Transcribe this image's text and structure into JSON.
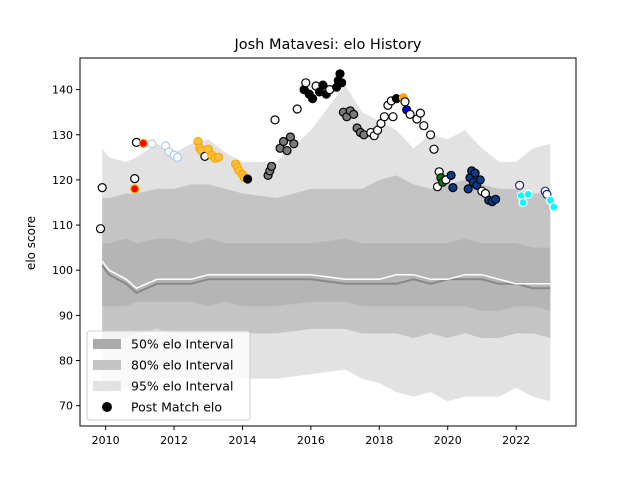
{
  "chart_data": {
    "type": "scatter",
    "title": "Josh Matavesi: elo History",
    "xlabel": "",
    "ylabel": "elo score",
    "xlim": [
      2009.25,
      2023.75
    ],
    "ylim": [
      65.5,
      147
    ],
    "x_ticks": [
      2010,
      2012,
      2014,
      2016,
      2018,
      2020,
      2022
    ],
    "y_ticks": [
      70,
      80,
      90,
      100,
      110,
      120,
      130,
      140
    ],
    "grid": false,
    "legend_position": "bottom-left",
    "legend": [
      {
        "label": "50% elo Interval",
        "kind": "band50"
      },
      {
        "label": "80% elo Interval",
        "kind": "band80"
      },
      {
        "label": "95% elo Interval",
        "kind": "band95"
      },
      {
        "label": "Post Match elo",
        "kind": "marker"
      }
    ],
    "colors": {
      "band50": "#aaaaaa",
      "band80": "#c4c4c4",
      "band95": "#e2e2e2",
      "median_line": "#888888",
      "mean_line": "#ffffff",
      "marker_default": "#000000",
      "marker_edge": "#000000"
    },
    "bands": {
      "x": [
        2009.9,
        2010.1,
        2010.6,
        2010.9,
        2011.5,
        2012.0,
        2012.5,
        2013.0,
        2013.5,
        2014.0,
        2015.0,
        2016.0,
        2017.0,
        2017.5,
        2018.0,
        2018.5,
        2019.0,
        2019.5,
        2020.0,
        2020.5,
        2021.0,
        2021.5,
        2022.0,
        2022.5,
        2023.0
      ],
      "p2_5": [
        73,
        73,
        74,
        75,
        76,
        76,
        76,
        75,
        76,
        76,
        76,
        77,
        78,
        76,
        75,
        73,
        72,
        73,
        71,
        72,
        72,
        72,
        74,
        72,
        71
      ],
      "p10": [
        84,
        84,
        85,
        86,
        87,
        86,
        86,
        86,
        86,
        86,
        86,
        87,
        87,
        86,
        86,
        86,
        85,
        86,
        85,
        86,
        85,
        85,
        86,
        86,
        85
      ],
      "p25": [
        92,
        92,
        92,
        93,
        93,
        93,
        93,
        92,
        93,
        92,
        92,
        93,
        93,
        92,
        92,
        92,
        92,
        92,
        92,
        92,
        91,
        91,
        92,
        92,
        91
      ],
      "p75": [
        106,
        106,
        107,
        106,
        107,
        107,
        106,
        107,
        106,
        106,
        106,
        106,
        107,
        106,
        106,
        106,
        106,
        106,
        106,
        107,
        106,
        106,
        106,
        105,
        105
      ],
      "p90": [
        116,
        116,
        117,
        117,
        118,
        118,
        119,
        119,
        118,
        117,
        116,
        118,
        118,
        118,
        120,
        121,
        119,
        118,
        119,
        120,
        119,
        118,
        118,
        117,
        117
      ],
      "p97_5": [
        127,
        125,
        124,
        125,
        128,
        126,
        128,
        129,
        126,
        124,
        124,
        131,
        141,
        135,
        133,
        131,
        127,
        130,
        129,
        131,
        127,
        124,
        124,
        127,
        128
      ],
      "median": [
        101,
        99,
        97,
        95,
        97,
        97,
        97,
        98,
        98,
        98,
        98,
        98,
        97,
        97,
        97,
        97,
        98,
        97,
        98,
        98,
        98,
        97,
        97,
        96,
        96
      ],
      "mean": [
        102,
        100,
        98,
        96,
        98,
        98,
        98,
        99,
        99,
        99,
        99,
        99,
        98,
        98,
        98,
        99,
        99,
        98,
        98,
        99,
        99,
        98,
        97,
        97,
        97
      ]
    },
    "points": [
      {
        "x": 2009.85,
        "y": 109.2,
        "color": "#ffffff"
      },
      {
        "x": 2009.9,
        "y": 118.3,
        "color": "#ffffff"
      },
      {
        "x": 2010.85,
        "y": 120.3,
        "color": "#ffffff"
      },
      {
        "x": 2010.85,
        "y": 118.0,
        "color": "#ff0000",
        "edge": "#ffa500"
      },
      {
        "x": 2010.9,
        "y": 128.3,
        "color": "#ffffff"
      },
      {
        "x": 2011.1,
        "y": 128.1,
        "color": "#ff0000",
        "edge": "#ffa500"
      },
      {
        "x": 2011.35,
        "y": 128.0,
        "color": "#ffffff",
        "edge": "#aaccee"
      },
      {
        "x": 2011.75,
        "y": 127.5,
        "color": "#ffffff",
        "edge": "#aaccee"
      },
      {
        "x": 2011.85,
        "y": 126.2,
        "color": "#ffffff",
        "edge": "#aaccee"
      },
      {
        "x": 2012.0,
        "y": 125.5,
        "color": "#ffffff",
        "edge": "#aaccee"
      },
      {
        "x": 2012.1,
        "y": 125.0,
        "color": "#ffffff",
        "edge": "#aaccee"
      },
      {
        "x": 2012.7,
        "y": 128.5,
        "color": "#f5c242",
        "edge": "#ffa500"
      },
      {
        "x": 2012.75,
        "y": 127.0,
        "color": "#f5c242",
        "edge": "#ffa500"
      },
      {
        "x": 2012.8,
        "y": 126.5,
        "color": "#f5c242",
        "edge": "#ffa500"
      },
      {
        "x": 2012.9,
        "y": 125.2,
        "color": "#ffffff"
      },
      {
        "x": 2013.0,
        "y": 126.8,
        "color": "#f5c242",
        "edge": "#ffa500"
      },
      {
        "x": 2013.1,
        "y": 125.5,
        "color": "#f5c242",
        "edge": "#ffa500"
      },
      {
        "x": 2013.2,
        "y": 124.8,
        "color": "#f5c242",
        "edge": "#ffa500"
      },
      {
        "x": 2013.3,
        "y": 125.0,
        "color": "#f5c242",
        "edge": "#ffa500"
      },
      {
        "x": 2013.8,
        "y": 123.5,
        "color": "#f5c242",
        "edge": "#ffa500"
      },
      {
        "x": 2013.85,
        "y": 122.8,
        "color": "#f5c242",
        "edge": "#ffa500"
      },
      {
        "x": 2013.9,
        "y": 122.0,
        "color": "#f5c242",
        "edge": "#ffa500"
      },
      {
        "x": 2014.0,
        "y": 121.2,
        "color": "#f5c242",
        "edge": "#ffa500"
      },
      {
        "x": 2014.05,
        "y": 120.5,
        "color": "#f5c242",
        "edge": "#ffa500"
      },
      {
        "x": 2014.15,
        "y": 120.2,
        "color": "#000000"
      },
      {
        "x": 2014.75,
        "y": 121.0,
        "color": "#7a7a7a"
      },
      {
        "x": 2014.8,
        "y": 122.0,
        "color": "#7a7a7a"
      },
      {
        "x": 2014.85,
        "y": 123.0,
        "color": "#7a7a7a"
      },
      {
        "x": 2014.95,
        "y": 133.3,
        "color": "#ffffff"
      },
      {
        "x": 2015.1,
        "y": 127.0,
        "color": "#7a7a7a"
      },
      {
        "x": 2015.2,
        "y": 128.5,
        "color": "#7a7a7a"
      },
      {
        "x": 2015.3,
        "y": 126.5,
        "color": "#7a7a7a"
      },
      {
        "x": 2015.4,
        "y": 129.5,
        "color": "#7a7a7a"
      },
      {
        "x": 2015.5,
        "y": 128.0,
        "color": "#7a7a7a"
      },
      {
        "x": 2015.6,
        "y": 135.7,
        "color": "#ffffff"
      },
      {
        "x": 2015.8,
        "y": 140.0,
        "color": "#000000"
      },
      {
        "x": 2015.85,
        "y": 141.5,
        "color": "#ffffff"
      },
      {
        "x": 2015.95,
        "y": 139.0,
        "color": "#000000"
      },
      {
        "x": 2016.05,
        "y": 138.0,
        "color": "#000000"
      },
      {
        "x": 2016.15,
        "y": 140.8,
        "color": "#ffffff"
      },
      {
        "x": 2016.25,
        "y": 139.5,
        "color": "#000000"
      },
      {
        "x": 2016.35,
        "y": 141.0,
        "color": "#000000"
      },
      {
        "x": 2016.45,
        "y": 139.0,
        "color": "#000000"
      },
      {
        "x": 2016.55,
        "y": 140.0,
        "color": "#ffffff"
      },
      {
        "x": 2016.75,
        "y": 140.5,
        "color": "#000000"
      },
      {
        "x": 2016.8,
        "y": 142.0,
        "color": "#000000"
      },
      {
        "x": 2016.85,
        "y": 143.5,
        "color": "#000000"
      },
      {
        "x": 2016.9,
        "y": 141.5,
        "color": "#000000"
      },
      {
        "x": 2016.95,
        "y": 135.0,
        "color": "#7a7a7a"
      },
      {
        "x": 2017.05,
        "y": 134.0,
        "color": "#7a7a7a"
      },
      {
        "x": 2017.15,
        "y": 135.3,
        "color": "#7a7a7a"
      },
      {
        "x": 2017.25,
        "y": 134.5,
        "color": "#7a7a7a"
      },
      {
        "x": 2017.35,
        "y": 131.5,
        "color": "#7a7a7a"
      },
      {
        "x": 2017.45,
        "y": 130.5,
        "color": "#7a7a7a"
      },
      {
        "x": 2017.55,
        "y": 130.0,
        "color": "#7a7a7a"
      },
      {
        "x": 2017.75,
        "y": 130.5,
        "color": "#ffffff"
      },
      {
        "x": 2017.85,
        "y": 129.8,
        "color": "#ffffff"
      },
      {
        "x": 2017.95,
        "y": 131.0,
        "color": "#ffffff"
      },
      {
        "x": 2018.05,
        "y": 132.5,
        "color": "#ffffff"
      },
      {
        "x": 2018.15,
        "y": 134.0,
        "color": "#ffffff"
      },
      {
        "x": 2018.25,
        "y": 136.5,
        "color": "#ffffff"
      },
      {
        "x": 2018.35,
        "y": 137.5,
        "color": "#ffffff"
      },
      {
        "x": 2018.4,
        "y": 134.0,
        "color": "#ffffff"
      },
      {
        "x": 2018.5,
        "y": 138.0,
        "color": "#000000"
      },
      {
        "x": 2018.7,
        "y": 138.2,
        "color": "#ffa500",
        "edge": "#ffa500"
      },
      {
        "x": 2018.75,
        "y": 137.3,
        "color": "#ffffff"
      },
      {
        "x": 2018.8,
        "y": 135.5,
        "color": "#0000ff"
      },
      {
        "x": 2018.9,
        "y": 134.5,
        "color": "#ffffff"
      },
      {
        "x": 2019.1,
        "y": 133.5,
        "color": "#ffffff"
      },
      {
        "x": 2019.2,
        "y": 134.8,
        "color": "#ffffff"
      },
      {
        "x": 2019.3,
        "y": 132.0,
        "color": "#ffffff"
      },
      {
        "x": 2019.5,
        "y": 130.0,
        "color": "#ffffff"
      },
      {
        "x": 2019.6,
        "y": 126.8,
        "color": "#ffffff"
      },
      {
        "x": 2019.7,
        "y": 118.5,
        "color": "#ffffff"
      },
      {
        "x": 2019.75,
        "y": 121.8,
        "color": "#ffffff"
      },
      {
        "x": 2019.8,
        "y": 120.5,
        "color": "#008000"
      },
      {
        "x": 2019.85,
        "y": 119.5,
        "color": "#008000"
      },
      {
        "x": 2019.95,
        "y": 120.0,
        "color": "#ffffff"
      },
      {
        "x": 2020.1,
        "y": 121.0,
        "color": "#0b3b8c"
      },
      {
        "x": 2020.15,
        "y": 118.3,
        "color": "#0b3b8c"
      },
      {
        "x": 2020.6,
        "y": 118.0,
        "color": "#0b3b8c"
      },
      {
        "x": 2020.65,
        "y": 120.5,
        "color": "#0b3b8c"
      },
      {
        "x": 2020.7,
        "y": 122.0,
        "color": "#0b3b8c"
      },
      {
        "x": 2020.75,
        "y": 119.5,
        "color": "#0b3b8c"
      },
      {
        "x": 2020.8,
        "y": 121.5,
        "color": "#0b3b8c"
      },
      {
        "x": 2020.85,
        "y": 118.8,
        "color": "#0b3b8c"
      },
      {
        "x": 2020.95,
        "y": 120.0,
        "color": "#0b3b8c"
      },
      {
        "x": 2021.0,
        "y": 117.5,
        "color": "#ffffff"
      },
      {
        "x": 2021.1,
        "y": 117.0,
        "color": "#ffffff"
      },
      {
        "x": 2021.2,
        "y": 115.5,
        "color": "#0b3b8c"
      },
      {
        "x": 2021.3,
        "y": 115.2,
        "color": "#0b3b8c"
      },
      {
        "x": 2021.4,
        "y": 115.7,
        "color": "#0b3b8c"
      },
      {
        "x": 2022.1,
        "y": 118.8,
        "color": "#ffffff",
        "edge": "#1a237e"
      },
      {
        "x": 2022.15,
        "y": 116.5,
        "color": "#00ffff",
        "edge": "#ffffff"
      },
      {
        "x": 2022.2,
        "y": 115.0,
        "color": "#00ffff",
        "edge": "#ffffff"
      },
      {
        "x": 2022.35,
        "y": 116.8,
        "color": "#00ffff",
        "edge": "#ffffff"
      },
      {
        "x": 2022.85,
        "y": 117.5,
        "color": "#ffffff",
        "edge": "#1a237e"
      },
      {
        "x": 2022.9,
        "y": 116.8,
        "color": "#ffffff",
        "edge": "#1a237e"
      },
      {
        "x": 2023.0,
        "y": 115.5,
        "color": "#00ffff",
        "edge": "#ffffff"
      },
      {
        "x": 2023.1,
        "y": 114.0,
        "color": "#00ffff",
        "edge": "#ffffff"
      }
    ]
  }
}
